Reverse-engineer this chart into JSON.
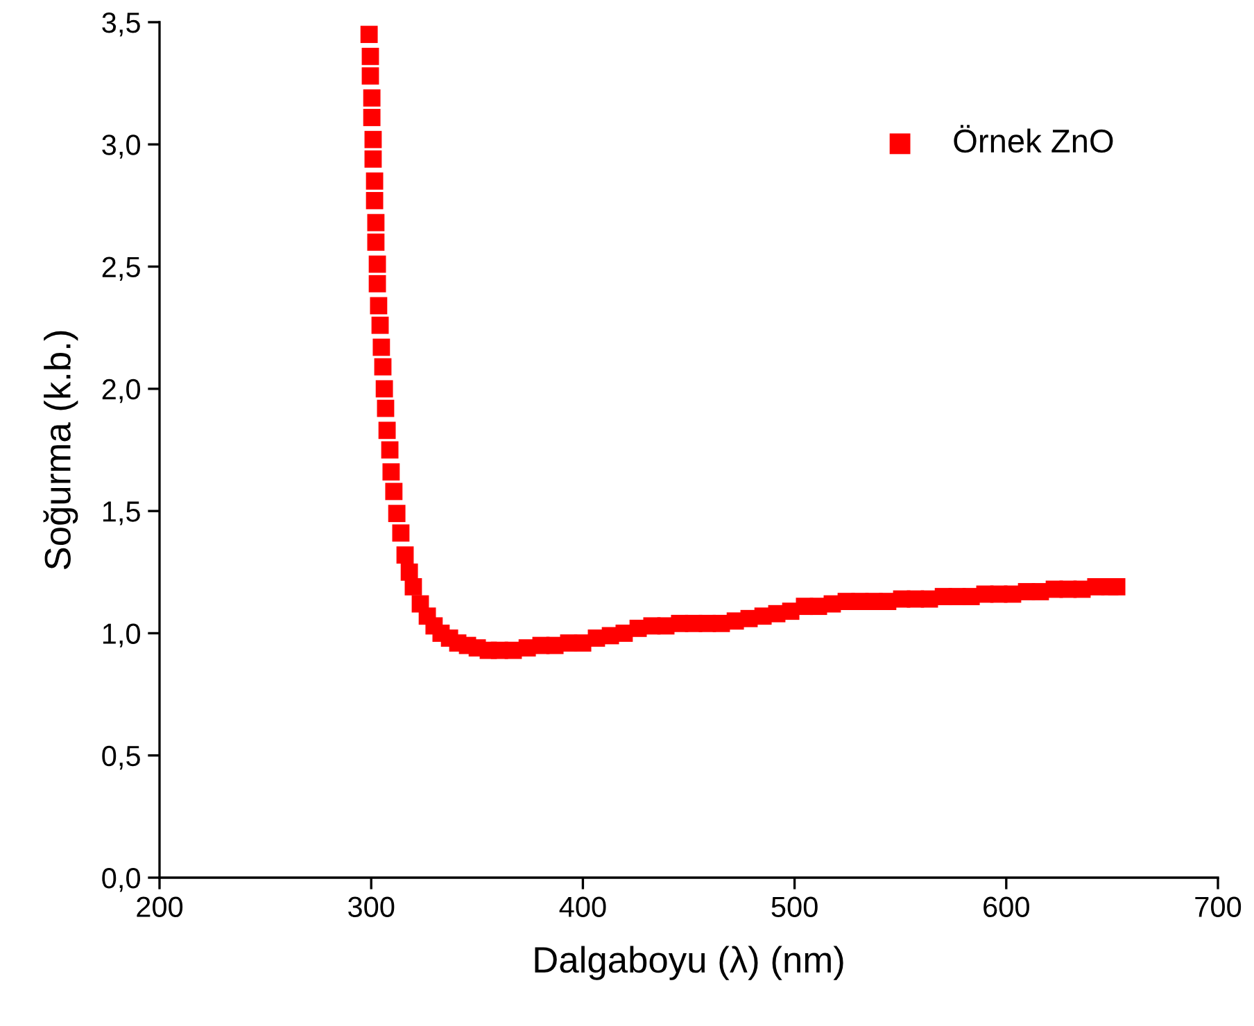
{
  "chart_data": {
    "type": "scatter",
    "xlabel": "Dalgaboyu (λ) (nm)",
    "ylabel": "Soğurma (k.b.)",
    "marker": "square",
    "legend": "top right",
    "grid": false,
    "xlim": [
      200,
      700
    ],
    "xticks": [
      200,
      300,
      400,
      500,
      600,
      700
    ],
    "ylim": [
      0,
      3.5
    ],
    "yticks": [
      {
        "value": 0,
        "label": "0,0"
      },
      {
        "value": 0.5,
        "label": "0,5"
      },
      {
        "value": 1,
        "label": "1,0"
      },
      {
        "value": 1.5,
        "label": "1,5"
      },
      {
        "value": 2,
        "label": "2,0"
      },
      {
        "value": 2.5,
        "label": "2,5"
      },
      {
        "value": 3,
        "label": "3,0"
      },
      {
        "value": 3.5,
        "label": "3,5"
      }
    ],
    "series": [
      {
        "name": "Örnek ZnO",
        "color": "#ff0000",
        "x": [
          299.0,
          299.6,
          299.6,
          300.3,
          300.3,
          300.9,
          300.9,
          301.6,
          301.6,
          302.2,
          302.2,
          302.9,
          302.9,
          303.5,
          304.2,
          304.8,
          305.5,
          306.2,
          306.8,
          307.5,
          308.8,
          309.4,
          310.7,
          312.1,
          314.0,
          316.0,
          318.0,
          319.9,
          323.2,
          326.5,
          329.7,
          333.0,
          337.0,
          340.9,
          345.5,
          350.1,
          355.3,
          360.6,
          367.1,
          373.7,
          380.2,
          386.8,
          393.3,
          399.9,
          406.4,
          413.0,
          419.5,
          426.1,
          432.6,
          439.2,
          445.7,
          452.3,
          458.8,
          465.4,
          472.0,
          478.5,
          485.1,
          491.6,
          498.2,
          504.7,
          511.3,
          517.8,
          524.4,
          530.9,
          537.5,
          544.0,
          550.6,
          557.1,
          563.7,
          570.3,
          576.8,
          583.4,
          589.9,
          596.5,
          603.0,
          609.6,
          616.1,
          622.7,
          629.2,
          635.8,
          642.3,
          648.9,
          652.2
        ],
        "values": [
          3.45,
          3.36,
          3.28,
          3.19,
          3.11,
          3.02,
          2.94,
          2.85,
          2.77,
          2.68,
          2.6,
          2.51,
          2.43,
          2.34,
          2.26,
          2.17,
          2.09,
          2.0,
          1.92,
          1.83,
          1.75,
          1.66,
          1.58,
          1.49,
          1.41,
          1.32,
          1.25,
          1.19,
          1.12,
          1.07,
          1.03,
          1.0,
          0.98,
          0.96,
          0.95,
          0.94,
          0.93,
          0.93,
          0.93,
          0.94,
          0.95,
          0.95,
          0.96,
          0.96,
          0.98,
          0.99,
          1.0,
          1.02,
          1.03,
          1.03,
          1.04,
          1.04,
          1.04,
          1.04,
          1.05,
          1.06,
          1.07,
          1.08,
          1.09,
          1.11,
          1.11,
          1.12,
          1.13,
          1.13,
          1.13,
          1.13,
          1.14,
          1.14,
          1.14,
          1.15,
          1.15,
          1.15,
          1.16,
          1.16,
          1.16,
          1.17,
          1.17,
          1.18,
          1.18,
          1.18,
          1.19,
          1.19,
          1.19
        ]
      }
    ]
  }
}
